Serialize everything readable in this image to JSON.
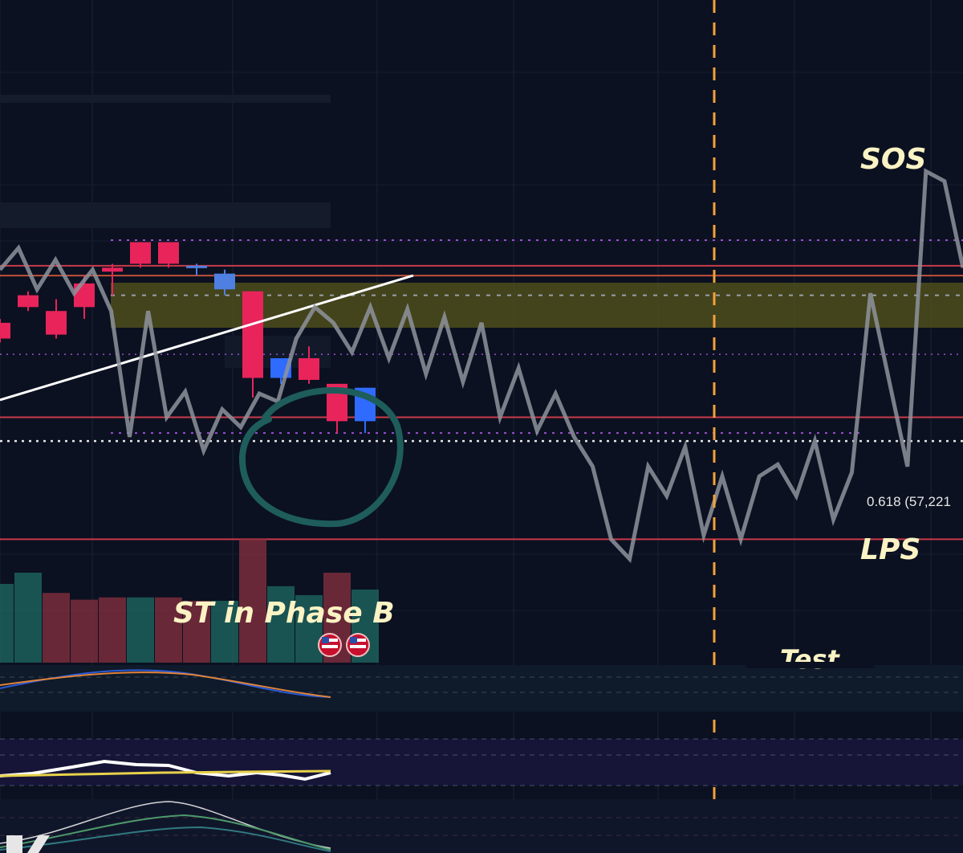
{
  "chart_data": {
    "type": "line",
    "subtype": "candlestick-with-wyckoff-projection",
    "title": "",
    "xlabel": "",
    "ylabel": "",
    "grid": true,
    "colors": {
      "background": "#0b1120",
      "bull_candle": "#e8245b",
      "bear_candle": "#2f6bff",
      "bear_candle_light": "#4f7fe0",
      "projection_path": "#8e939c",
      "support_resistance": "#c83a4a",
      "fib_dotted": "#9c4fd2",
      "white_dotted": "#e6e6e6",
      "trendline": "#ffffff",
      "zone": "#5a5a1e",
      "event_marker": "#f6a13a",
      "circle_highlight": "#1f5f5e",
      "label_text": "#fbf3c4",
      "volume_up": "#1f6b63",
      "volume_down": "#8a3040"
    },
    "candles": [
      {
        "i": 0,
        "o": 0.18,
        "c": 0.1,
        "h": 0.2,
        "l": 0.08
      },
      {
        "i": 1,
        "o": 0.32,
        "c": 0.26,
        "h": 0.34,
        "l": 0.24
      },
      {
        "i": 2,
        "o": 0.24,
        "c": 0.12,
        "h": 0.3,
        "l": 0.1
      },
      {
        "i": 3,
        "o": 0.38,
        "c": 0.26,
        "h": 0.42,
        "l": 0.2
      },
      {
        "i": 4,
        "o": 0.46,
        "c": 0.44,
        "h": 0.48,
        "l": 0.32
      },
      {
        "i": 5,
        "o": 0.59,
        "c": 0.48,
        "h": 0.59,
        "l": 0.46
      },
      {
        "i": 6,
        "o": 0.59,
        "c": 0.48,
        "h": 0.59,
        "l": 0.46
      },
      {
        "i": 7,
        "o": 0.47,
        "c": 0.46,
        "h": 0.48,
        "l": 0.42
      },
      {
        "i": 8,
        "o": 0.43,
        "c": 0.35,
        "h": 0.45,
        "l": 0.32
      },
      {
        "i": 9,
        "o": 0.34,
        "c": -0.1,
        "h": 0.34,
        "l": -0.2
      },
      {
        "i": 10,
        "o": -0.1,
        "c": 0.0,
        "h": 0.0,
        "l": -0.13
      },
      {
        "i": 11,
        "o": 0.0,
        "c": -0.11,
        "h": 0.06,
        "l": -0.13
      },
      {
        "i": 12,
        "o": -0.13,
        "c": -0.32,
        "h": -0.13,
        "l": -0.38
      },
      {
        "i": 13,
        "o": -0.32,
        "c": -0.15,
        "h": -0.15,
        "l": -0.38
      }
    ],
    "projection_path": [
      0.45,
      0.56,
      0.35,
      0.5,
      0.33,
      0.45,
      0.24,
      -0.4,
      0.24,
      -0.3,
      -0.17,
      -0.47,
      -0.26,
      -0.35,
      -0.18,
      -0.22,
      0.1,
      0.26,
      0.18,
      0.03,
      0.26,
      0.0,
      0.25,
      -0.08,
      0.21,
      -0.12,
      0.18,
      -0.3,
      -0.05,
      -0.37,
      -0.18,
      -0.4,
      -0.55,
      -0.92,
      -1.02,
      -0.55,
      -0.7,
      -0.45,
      -0.9,
      -0.6,
      -0.92,
      -0.6,
      -0.54,
      -0.7,
      -0.42,
      -0.82,
      -0.58,
      0.33,
      -0.11,
      -0.55,
      0.95,
      0.9,
      0.46
    ],
    "levels": {
      "fib_upper": 0.6,
      "resistance": 0.47,
      "zone": [
        0.42,
        0.5
      ],
      "zone_mid": 0.42,
      "white_dotted_upper": 0.32,
      "fib_mid": 0.02,
      "support": -0.3,
      "fib_0618": -0.38,
      "white_dotted_lower": -0.38,
      "bottom_support": -0.92
    },
    "fib_level_label": "0.618 (57,221",
    "annotations": [
      {
        "text": "SOS",
        "near": "top-right peak"
      },
      {
        "text": "LPS",
        "near": "right, below 0.618 level"
      },
      {
        "text": "ST in Phase B",
        "near": "lower-left volume area"
      },
      {
        "text": "Test",
        "near": "bottom, center-right"
      }
    ],
    "volume": [
      0.7,
      0.8,
      0.62,
      0.56,
      0.58,
      0.58,
      0.58,
      0.55,
      0.55,
      1.1,
      0.68,
      0.6,
      0.8,
      0.65
    ],
    "indicators": [
      {
        "pane": "MACD",
        "lines": 2
      },
      {
        "pane": "RSI",
        "lines": 2
      },
      {
        "pane": "oscillator",
        "lines": 3
      }
    ]
  },
  "labels": {
    "sos": "SOS",
    "lps": "LPS",
    "st_phase_b": "ST in Phase B",
    "test": "Test",
    "fib_0618": "0.618 (57,221"
  },
  "logo": "TV"
}
